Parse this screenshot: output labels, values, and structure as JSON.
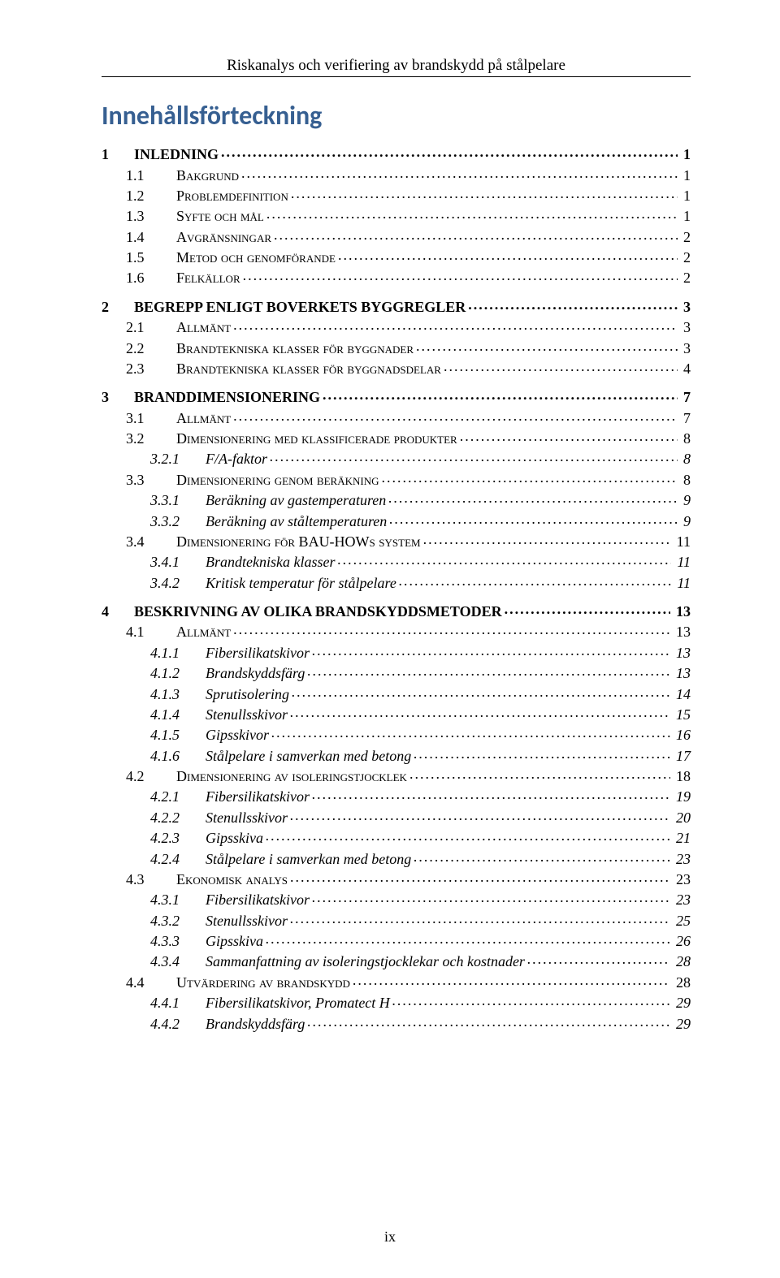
{
  "running_head": "Riskanalys och verifiering av brandskydd på stålpelare",
  "doc_title": "Innehållsförteckning",
  "page_number": "ix",
  "colors": {
    "heading": "#365F91",
    "text": "#000000",
    "background": "#ffffff",
    "rule": "#000000"
  },
  "typography": {
    "body_family": "Times New Roman",
    "heading_family": "Calibri",
    "body_size_pt": 12,
    "heading_size_pt": 22,
    "running_head_size_pt": 12
  },
  "toc": [
    {
      "level": 1,
      "num": "1",
      "title": "INLEDNING",
      "page": "1",
      "gap_before": false
    },
    {
      "level": 2,
      "num": "1.1",
      "title": "Bakgrund",
      "page": "1",
      "gap_before": false
    },
    {
      "level": 2,
      "num": "1.2",
      "title": "Problemdefinition",
      "page": "1",
      "gap_before": false
    },
    {
      "level": 2,
      "num": "1.3",
      "title": "Syfte och mål",
      "page": "1",
      "gap_before": false
    },
    {
      "level": 2,
      "num": "1.4",
      "title": "Avgränsningar",
      "page": "2",
      "gap_before": false
    },
    {
      "level": 2,
      "num": "1.5",
      "title": "Metod och genomförande",
      "page": "2",
      "gap_before": false
    },
    {
      "level": 2,
      "num": "1.6",
      "title": "Felkällor",
      "page": "2",
      "gap_before": false
    },
    {
      "level": 1,
      "num": "2",
      "title": "BEGREPP ENLIGT BOVERKETS BYGGREGLER",
      "page": "3",
      "gap_before": true
    },
    {
      "level": 2,
      "num": "2.1",
      "title": "Allmänt",
      "page": "3",
      "gap_before": false
    },
    {
      "level": 2,
      "num": "2.2",
      "title": "Brandtekniska klasser för byggnader",
      "page": "3",
      "gap_before": false
    },
    {
      "level": 2,
      "num": "2.3",
      "title": "Brandtekniska klasser för byggnadsdelar",
      "page": "4",
      "gap_before": false
    },
    {
      "level": 1,
      "num": "3",
      "title": "BRANDDIMENSIONERING",
      "page": "7",
      "gap_before": true
    },
    {
      "level": 2,
      "num": "3.1",
      "title": "Allmänt",
      "page": "7",
      "gap_before": false
    },
    {
      "level": 2,
      "num": "3.2",
      "title": "Dimensionering med klassificerade produkter",
      "page": "8",
      "gap_before": false
    },
    {
      "level": 3,
      "num": "3.2.1",
      "title": "F/A-faktor",
      "page": "8",
      "gap_before": false
    },
    {
      "level": 2,
      "num": "3.3",
      "title": "Dimensionering genom beräkning",
      "page": "8",
      "gap_before": false
    },
    {
      "level": 3,
      "num": "3.3.1",
      "title": "Beräkning av gastemperaturen",
      "page": "9",
      "gap_before": false
    },
    {
      "level": 3,
      "num": "3.3.2",
      "title": "Beräkning av ståltemperaturen",
      "page": "9",
      "gap_before": false
    },
    {
      "level": 2,
      "num": "3.4",
      "title": "Dimensionering för BAU-HOWs system",
      "page": "11",
      "gap_before": false
    },
    {
      "level": 3,
      "num": "3.4.1",
      "title": "Brandtekniska klasser",
      "page": "11",
      "gap_before": false
    },
    {
      "level": 3,
      "num": "3.4.2",
      "title": "Kritisk temperatur för stålpelare",
      "page": "11",
      "gap_before": false
    },
    {
      "level": 1,
      "num": "4",
      "title": "BESKRIVNING AV OLIKA BRANDSKYDDSMETODER",
      "page": "13",
      "gap_before": true
    },
    {
      "level": 2,
      "num": "4.1",
      "title": "Allmänt",
      "page": "13",
      "gap_before": false
    },
    {
      "level": 3,
      "num": "4.1.1",
      "title": "Fibersilikatskivor",
      "page": "13",
      "gap_before": false
    },
    {
      "level": 3,
      "num": "4.1.2",
      "title": "Brandskyddsfärg",
      "page": "13",
      "gap_before": false
    },
    {
      "level": 3,
      "num": "4.1.3",
      "title": "Sprutisolering",
      "page": "14",
      "gap_before": false
    },
    {
      "level": 3,
      "num": "4.1.4",
      "title": "Stenullsskivor",
      "page": "15",
      "gap_before": false
    },
    {
      "level": 3,
      "num": "4.1.5",
      "title": "Gipsskivor",
      "page": "16",
      "gap_before": false
    },
    {
      "level": 3,
      "num": "4.1.6",
      "title": "Stålpelare i samverkan med betong",
      "page": "17",
      "gap_before": false
    },
    {
      "level": 2,
      "num": "4.2",
      "title": "Dimensionering av isoleringstjocklek",
      "page": "18",
      "gap_before": false
    },
    {
      "level": 3,
      "num": "4.2.1",
      "title": "Fibersilikatskivor",
      "page": "19",
      "gap_before": false
    },
    {
      "level": 3,
      "num": "4.2.2",
      "title": "Stenullsskivor",
      "page": "20",
      "gap_before": false
    },
    {
      "level": 3,
      "num": "4.2.3",
      "title": "Gipsskiva",
      "page": "21",
      "gap_before": false
    },
    {
      "level": 3,
      "num": "4.2.4",
      "title": "Stålpelare i samverkan med betong",
      "page": "23",
      "gap_before": false
    },
    {
      "level": 2,
      "num": "4.3",
      "title": "Ekonomisk analys",
      "page": "23",
      "gap_before": false
    },
    {
      "level": 3,
      "num": "4.3.1",
      "title": "Fibersilikatskivor",
      "page": "23",
      "gap_before": false
    },
    {
      "level": 3,
      "num": "4.3.2",
      "title": "Stenullsskivor",
      "page": "25",
      "gap_before": false
    },
    {
      "level": 3,
      "num": "4.3.3",
      "title": "Gipsskiva",
      "page": "26",
      "gap_before": false
    },
    {
      "level": 3,
      "num": "4.3.4",
      "title": "Sammanfattning av isoleringstjocklekar och kostnader",
      "page": "28",
      "gap_before": false
    },
    {
      "level": 2,
      "num": "4.4",
      "title": "Utvärdering av brandskydd",
      "page": "28",
      "gap_before": false
    },
    {
      "level": 3,
      "num": "4.4.1",
      "title": "Fibersilikatskivor, Promatect H",
      "page": "29",
      "gap_before": false
    },
    {
      "level": 3,
      "num": "4.4.2",
      "title": "Brandskyddsfärg",
      "page": "29",
      "gap_before": false
    }
  ]
}
